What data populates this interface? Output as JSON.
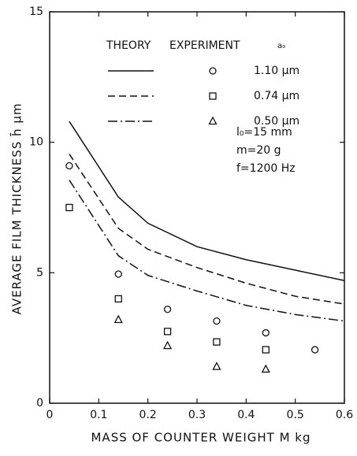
{
  "chart_data": {
    "type": "line",
    "xlabel": "MASS OF COUNTER WEIGHT M  kg",
    "ylabel": "AVERAGE FILM THICKNESS h̄  μm",
    "xlim": [
      0,
      0.6
    ],
    "xticks": [
      0,
      0.1,
      0.2,
      0.3,
      0.4,
      0.5,
      0.6
    ],
    "ylim": [
      0,
      15
    ],
    "yticks": [
      0,
      5,
      10,
      15
    ],
    "legend_headers": [
      "THEORY",
      "EXPERIMENT",
      "a₀"
    ],
    "annotations": [
      "l₀=15 mm",
      "m=20 g",
      "f=1200 Hz"
    ],
    "color": "#111111",
    "series": [
      {
        "name": "1.10 μm",
        "dash": "solid",
        "marker": "circle",
        "theory": {
          "x": [
            0.04,
            0.14,
            0.2,
            0.3,
            0.4,
            0.5,
            0.6
          ],
          "values": [
            10.8,
            7.9,
            6.9,
            6.0,
            5.5,
            5.1,
            4.7
          ]
        },
        "experiment": {
          "x": [
            0.04,
            0.14,
            0.24,
            0.34,
            0.44,
            0.54
          ],
          "values": [
            9.1,
            4.95,
            3.6,
            3.15,
            2.7,
            2.05
          ]
        }
      },
      {
        "name": "0.74 μm",
        "dash": "dashed",
        "marker": "square",
        "theory": {
          "x": [
            0.04,
            0.14,
            0.2,
            0.3,
            0.4,
            0.5,
            0.6
          ],
          "values": [
            9.55,
            6.7,
            5.9,
            5.2,
            4.6,
            4.1,
            3.8
          ]
        },
        "experiment": {
          "x": [
            0.04,
            0.14,
            0.24,
            0.34,
            0.44
          ],
          "values": [
            7.5,
            4.0,
            2.75,
            2.35,
            2.05
          ]
        }
      },
      {
        "name": "0.50 μm",
        "dash": "dashdot",
        "marker": "triangle",
        "theory": {
          "x": [
            0.04,
            0.14,
            0.2,
            0.3,
            0.4,
            0.5,
            0.6
          ],
          "values": [
            8.55,
            5.65,
            4.9,
            4.3,
            3.75,
            3.4,
            3.15
          ]
        },
        "experiment": {
          "x": [
            0.14,
            0.24,
            0.34,
            0.44
          ],
          "values": [
            3.2,
            2.2,
            1.4,
            1.3
          ]
        }
      }
    ]
  }
}
